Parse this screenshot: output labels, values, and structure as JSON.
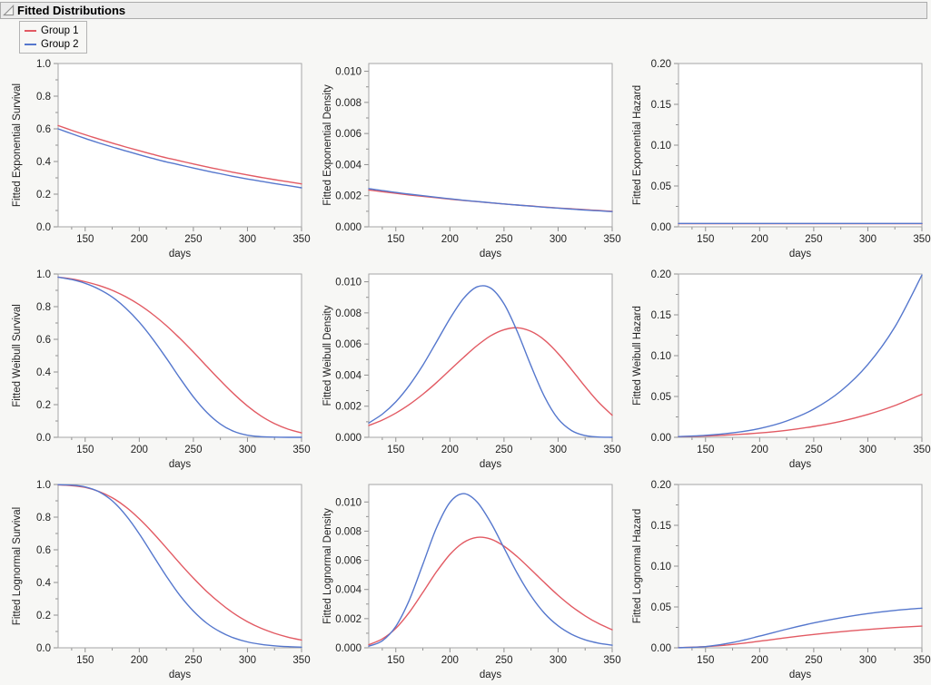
{
  "header": {
    "title": "Fitted Distributions"
  },
  "colors": {
    "group1": "#e25a63",
    "group2": "#5577cd",
    "frame": "#a6a6a6",
    "tick": "#8f8f8f",
    "text": "#1f1f1f",
    "plot_bg": "#ffffff",
    "page_bg": "#f7f7f5",
    "header_bg": "#ebebeb",
    "header_border": "#ababab",
    "legend_border": "#b3b3b3"
  },
  "legend": {
    "items": [
      {
        "label": "Group 1",
        "color_ref": "group1"
      },
      {
        "label": "Group 2",
        "color_ref": "group2"
      }
    ]
  },
  "chart_data": [
    {
      "id": "exponential-survival",
      "type": "line",
      "ylabel": "Fitted Exponential Survival",
      "xlabel": "days",
      "xlim": [
        125,
        350
      ],
      "ylim": [
        0,
        1.0
      ],
      "xticks": [
        150,
        200,
        250,
        300,
        350
      ],
      "ytick_values": [
        0,
        0.2,
        0.4,
        0.6,
        0.8,
        1.0
      ],
      "ytick_labels": [
        "0.0",
        "0.2",
        "0.4",
        "0.6",
        "0.8",
        "1.0"
      ],
      "x": [
        125,
        137.5,
        150,
        162.5,
        175,
        187.5,
        200,
        212.5,
        225,
        237.5,
        250,
        262.5,
        275,
        287.5,
        300,
        312.5,
        325,
        337.5,
        350
      ],
      "series": [
        {
          "name": "Group 1",
          "color_ref": "group1",
          "y": [
            0.62,
            0.591,
            0.564,
            0.538,
            0.513,
            0.489,
            0.466,
            0.444,
            0.423,
            0.404,
            0.385,
            0.367,
            0.35,
            0.333,
            0.318,
            0.303,
            0.289,
            0.276,
            0.263
          ]
        },
        {
          "name": "Group 2",
          "color_ref": "group2",
          "y": [
            0.6,
            0.57,
            0.541,
            0.514,
            0.489,
            0.465,
            0.441,
            0.419,
            0.398,
            0.379,
            0.36,
            0.342,
            0.325,
            0.308,
            0.293,
            0.279,
            0.265,
            0.252,
            0.239
          ]
        }
      ]
    },
    {
      "id": "exponential-density",
      "type": "line",
      "ylabel": "Fitted Exponential Density",
      "xlabel": "days",
      "xlim": [
        125,
        350
      ],
      "ylim": [
        0,
        0.0105
      ],
      "xticks": [
        150,
        200,
        250,
        300,
        350
      ],
      "ytick_values": [
        0,
        0.002,
        0.004,
        0.006,
        0.008,
        0.01
      ],
      "ytick_labels": [
        "0.000",
        "0.002",
        "0.004",
        "0.006",
        "0.008",
        "0.010"
      ],
      "x": [
        125,
        137.5,
        150,
        162.5,
        175,
        187.5,
        200,
        212.5,
        225,
        237.5,
        250,
        262.5,
        275,
        287.5,
        300,
        312.5,
        325,
        337.5,
        350
      ],
      "series": [
        {
          "name": "Group 1",
          "color_ref": "group1",
          "y": [
            0.00237,
            0.00226,
            0.00215,
            0.00205,
            0.00196,
            0.00187,
            0.00178,
            0.0017,
            0.00162,
            0.00154,
            0.00147,
            0.0014,
            0.00134,
            0.00127,
            0.00121,
            0.00116,
            0.0011,
            0.00105,
            0.001
          ]
        },
        {
          "name": "Group 2",
          "color_ref": "group2",
          "y": [
            0.00245,
            0.00233,
            0.00221,
            0.0021,
            0.002,
            0.0019,
            0.0018,
            0.00171,
            0.00163,
            0.00155,
            0.00147,
            0.0014,
            0.00133,
            0.00126,
            0.0012,
            0.00114,
            0.00108,
            0.00103,
            0.00098
          ]
        }
      ]
    },
    {
      "id": "exponential-hazard",
      "type": "line",
      "ylabel": "Fitted Exponential Hazard",
      "xlabel": "days",
      "xlim": [
        125,
        350
      ],
      "ylim": [
        0,
        0.2
      ],
      "xticks": [
        150,
        200,
        250,
        300,
        350
      ],
      "ytick_values": [
        0,
        0.05,
        0.1,
        0.15,
        0.2
      ],
      "ytick_labels": [
        "0.00",
        "0.05",
        "0.10",
        "0.15",
        "0.20"
      ],
      "x": [
        125,
        350
      ],
      "series": [
        {
          "name": "Group 1",
          "color_ref": "group1",
          "y": [
            0.0038,
            0.0038
          ]
        },
        {
          "name": "Group 2",
          "color_ref": "group2",
          "y": [
            0.0041,
            0.0041
          ]
        }
      ]
    },
    {
      "id": "weibull-survival",
      "type": "line",
      "ylabel": "Fitted Weibull Survival",
      "xlabel": "days",
      "xlim": [
        125,
        350
      ],
      "ylim": [
        0,
        1.0
      ],
      "xticks": [
        150,
        200,
        250,
        300,
        350
      ],
      "ytick_values": [
        0,
        0.2,
        0.4,
        0.6,
        0.8,
        1.0
      ],
      "ytick_labels": [
        "0.0",
        "0.2",
        "0.4",
        "0.6",
        "0.8",
        "1.0"
      ],
      "x": [
        125,
        137.5,
        150,
        162.5,
        175,
        187.5,
        200,
        212.5,
        225,
        237.5,
        250,
        262.5,
        275,
        287.5,
        300,
        312.5,
        325,
        337.5,
        350
      ],
      "series": [
        {
          "name": "Group 1",
          "color_ref": "group1",
          "y": [
            0.981,
            0.97,
            0.953,
            0.93,
            0.9,
            0.861,
            0.812,
            0.753,
            0.684,
            0.606,
            0.522,
            0.434,
            0.347,
            0.265,
            0.192,
            0.131,
            0.084,
            0.05,
            0.027
          ]
        },
        {
          "name": "Group 2",
          "color_ref": "group2",
          "y": [
            0.981,
            0.966,
            0.943,
            0.908,
            0.859,
            0.791,
            0.705,
            0.601,
            0.485,
            0.363,
            0.248,
            0.152,
            0.081,
            0.036,
            0.013,
            0.004,
            0.001,
            0.0002,
            0.0
          ]
        }
      ]
    },
    {
      "id": "weibull-density",
      "type": "line",
      "ylabel": "Fitted Weibull Density",
      "xlabel": "days",
      "xlim": [
        125,
        350
      ],
      "ylim": [
        0,
        0.0105
      ],
      "xticks": [
        150,
        200,
        250,
        300,
        350
      ],
      "ytick_values": [
        0,
        0.002,
        0.004,
        0.006,
        0.008,
        0.01
      ],
      "ytick_labels": [
        "0.000",
        "0.002",
        "0.004",
        "0.006",
        "0.008",
        "0.010"
      ],
      "x": [
        125,
        137.5,
        150,
        162.5,
        175,
        187.5,
        200,
        212.5,
        225,
        237.5,
        250,
        262.5,
        275,
        287.5,
        300,
        312.5,
        325,
        337.5,
        350
      ],
      "series": [
        {
          "name": "Group 1",
          "color_ref": "group1",
          "y": [
            0.00076,
            0.00111,
            0.00156,
            0.00211,
            0.00277,
            0.00351,
            0.00432,
            0.00513,
            0.00589,
            0.00652,
            0.00692,
            0.00704,
            0.00681,
            0.00625,
            0.00539,
            0.00435,
            0.00326,
            0.00225,
            0.00142
          ]
        },
        {
          "name": "Group 2",
          "color_ref": "group2",
          "y": [
            0.00092,
            0.00149,
            0.00228,
            0.00334,
            0.00464,
            0.00612,
            0.00763,
            0.00892,
            0.00967,
            0.0096,
            0.00858,
            0.00676,
            0.00459,
            0.0026,
            0.00119,
            0.00043,
            0.00011,
            2e-05,
            0.0
          ]
        }
      ]
    },
    {
      "id": "weibull-hazard",
      "type": "line",
      "ylabel": "Fitted Weibull Hazard",
      "xlabel": "days",
      "xlim": [
        125,
        350
      ],
      "ylim": [
        0,
        0.2
      ],
      "xticks": [
        150,
        200,
        250,
        300,
        350
      ],
      "ytick_values": [
        0,
        0.05,
        0.1,
        0.15,
        0.2
      ],
      "ytick_labels": [
        "0.00",
        "0.05",
        "0.10",
        "0.15",
        "0.20"
      ],
      "x": [
        125,
        150,
        175,
        200,
        225,
        250,
        275,
        300,
        325,
        350
      ],
      "series": [
        {
          "name": "Group 1",
          "color_ref": "group1",
          "y": [
            0.0008,
            0.0016,
            0.0031,
            0.0053,
            0.0086,
            0.0133,
            0.0196,
            0.028,
            0.0389,
            0.0527
          ]
        },
        {
          "name": "Group 2",
          "color_ref": "group2",
          "y": [
            0.0009,
            0.0024,
            0.0054,
            0.0108,
            0.02,
            0.0345,
            0.0567,
            0.0891,
            0.1351,
            0.1987
          ]
        }
      ]
    },
    {
      "id": "lognormal-survival",
      "type": "line",
      "ylabel": "Fitted Lognormal Survival",
      "xlabel": "days",
      "xlim": [
        125,
        350
      ],
      "ylim": [
        0,
        1.0
      ],
      "xticks": [
        150,
        200,
        250,
        300,
        350
      ],
      "ytick_values": [
        0,
        0.2,
        0.4,
        0.6,
        0.8,
        1.0
      ],
      "ytick_labels": [
        "0.0",
        "0.2",
        "0.4",
        "0.6",
        "0.8",
        "1.0"
      ],
      "x": [
        125,
        137.5,
        150,
        162.5,
        175,
        187.5,
        200,
        212.5,
        225,
        237.5,
        250,
        262.5,
        275,
        287.5,
        300,
        312.5,
        325,
        337.5,
        350
      ],
      "series": [
        {
          "name": "Group 1",
          "color_ref": "group1",
          "y": [
            0.998,
            0.993,
            0.982,
            0.958,
            0.919,
            0.863,
            0.79,
            0.705,
            0.612,
            0.517,
            0.427,
            0.344,
            0.272,
            0.21,
            0.16,
            0.12,
            0.089,
            0.065,
            0.047
          ]
        },
        {
          "name": "Group 2",
          "color_ref": "group2",
          "y": [
            0.999,
            0.996,
            0.985,
            0.956,
            0.9,
            0.812,
            0.698,
            0.568,
            0.439,
            0.321,
            0.225,
            0.15,
            0.097,
            0.06,
            0.036,
            0.021,
            0.012,
            0.007,
            0.004
          ]
        }
      ]
    },
    {
      "id": "lognormal-density",
      "type": "line",
      "ylabel": "Fitted Lognormal Density",
      "xlabel": "days",
      "xlim": [
        125,
        350
      ],
      "ylim": [
        0,
        0.0112
      ],
      "xticks": [
        150,
        200,
        250,
        300,
        350
      ],
      "ytick_values": [
        0,
        0.002,
        0.004,
        0.006,
        0.008,
        0.01
      ],
      "ytick_labels": [
        "0.000",
        "0.002",
        "0.004",
        "0.006",
        "0.008",
        "0.010"
      ],
      "x": [
        125,
        137.5,
        150,
        162.5,
        175,
        187.5,
        200,
        212.5,
        225,
        237.5,
        250,
        262.5,
        275,
        287.5,
        300,
        312.5,
        325,
        337.5,
        350
      ],
      "series": [
        {
          "name": "Group 1",
          "color_ref": "group1",
          "y": [
            0.00021,
            0.00061,
            0.00134,
            0.00244,
            0.0038,
            0.0052,
            0.0064,
            0.00722,
            0.00757,
            0.00746,
            0.00697,
            0.00623,
            0.00536,
            0.00446,
            0.0036,
            0.00284,
            0.00219,
            0.00166,
            0.00124
          ]
        },
        {
          "name": "Group 2",
          "color_ref": "group2",
          "y": [
            0.00011,
            0.00048,
            0.00147,
            0.00328,
            0.00573,
            0.00821,
            0.00997,
            0.01057,
            0.01001,
            0.00862,
            0.00685,
            0.00508,
            0.00355,
            0.00236,
            0.00151,
            0.00093,
            0.00055,
            0.00032,
            0.00018
          ]
        }
      ]
    },
    {
      "id": "lognormal-hazard",
      "type": "line",
      "ylabel": "Fitted Lognormal Hazard",
      "xlabel": "days",
      "xlim": [
        125,
        350
      ],
      "ylim": [
        0,
        0.2
      ],
      "xticks": [
        150,
        200,
        250,
        300,
        350
      ],
      "ytick_values": [
        0,
        0.05,
        0.1,
        0.15,
        0.2
      ],
      "ytick_labels": [
        "0.00",
        "0.05",
        "0.10",
        "0.15",
        "0.20"
      ],
      "x": [
        125,
        150,
        175,
        200,
        225,
        250,
        275,
        300,
        325,
        350
      ],
      "series": [
        {
          "name": "Group 1",
          "color_ref": "group1",
          "y": [
            0.0002,
            0.0014,
            0.0041,
            0.0081,
            0.0124,
            0.0163,
            0.0197,
            0.0225,
            0.0248,
            0.0266
          ]
        },
        {
          "name": "Group 2",
          "color_ref": "group2",
          "y": [
            0.0001,
            0.0015,
            0.0064,
            0.0143,
            0.0228,
            0.0305,
            0.0368,
            0.0419,
            0.0458,
            0.0486
          ]
        }
      ]
    }
  ]
}
